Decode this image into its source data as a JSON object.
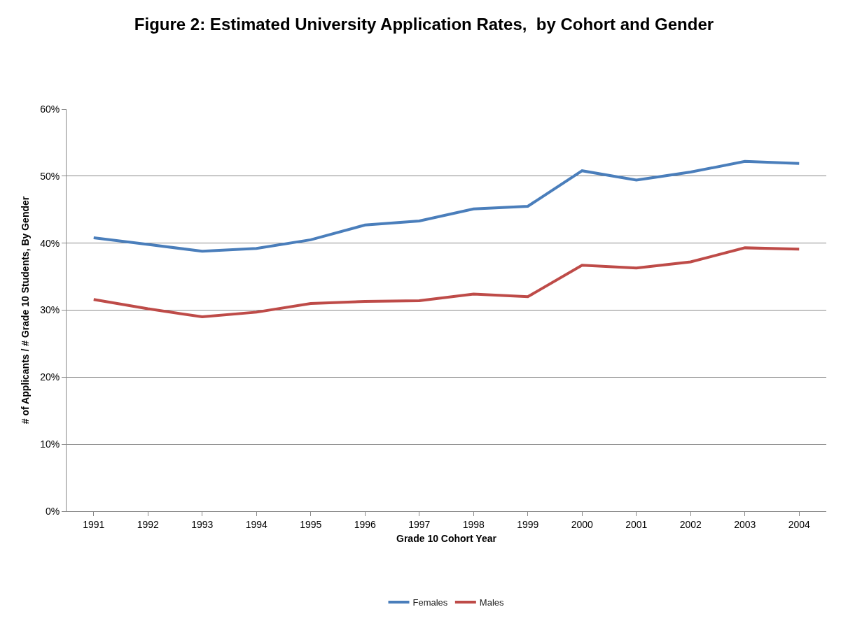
{
  "chart_data": {
    "type": "line",
    "title": "Figure 2: Estimated University Application Rates,  by Cohort and Gender",
    "xlabel": "Grade 10 Cohort Year",
    "ylabel": "# of Applicants / # Grade 10 Students, By Gender",
    "categories": [
      "1991",
      "1992",
      "1993",
      "1994",
      "1995",
      "1996",
      "1997",
      "1998",
      "1999",
      "2000",
      "2001",
      "2002",
      "2003",
      "2004"
    ],
    "series": [
      {
        "name": "Females",
        "color": "#4a7ebb",
        "values": [
          40.8,
          39.8,
          38.8,
          39.2,
          40.5,
          42.7,
          43.3,
          45.1,
          45.5,
          50.8,
          49.4,
          50.6,
          52.2,
          51.9
        ]
      },
      {
        "name": "Males",
        "color": "#be4b48",
        "values": [
          31.6,
          30.2,
          29.0,
          29.7,
          31.0,
          31.3,
          31.4,
          32.4,
          32.0,
          36.7,
          36.3,
          37.2,
          39.3,
          39.1
        ]
      }
    ],
    "ylim": [
      0,
      60
    ],
    "yticks": [
      {
        "value": 0,
        "label": "0%"
      },
      {
        "value": 10,
        "label": "10%"
      },
      {
        "value": 20,
        "label": "20%"
      },
      {
        "value": 30,
        "label": "30%"
      },
      {
        "value": 40,
        "label": "40%"
      },
      {
        "value": 50,
        "label": "50%"
      },
      {
        "value": 60,
        "label": "60%"
      }
    ],
    "grid": "y",
    "legend": "bottom",
    "marker": "none",
    "line_style": "solid"
  }
}
